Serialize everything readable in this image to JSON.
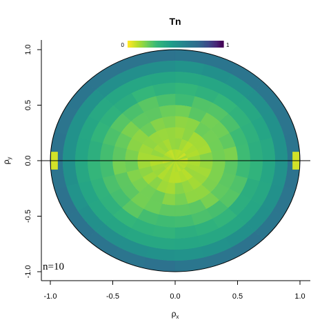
{
  "chart_data": {
    "type": "heatmap",
    "title": "Tn",
    "xlabel_main": "ρ",
    "xlabel_sub": "x",
    "ylabel_main": "ρ",
    "ylabel_sub": "y",
    "xlim": [
      -1.0,
      1.0
    ],
    "ylim": [
      -1.0,
      1.0
    ],
    "xticks": [
      -1.0,
      -0.5,
      0.0,
      0.5,
      1.0
    ],
    "xtick_labels": [
      "-1.0",
      "-0.5",
      "0.0",
      "0.5",
      "1.0"
    ],
    "yticks": [
      -1.0,
      -0.5,
      0.0,
      0.5,
      1.0
    ],
    "ytick_labels": [
      "-1.0",
      "-0.5",
      "0.0",
      "0.5",
      "1.0"
    ],
    "colorbar": {
      "min": 0,
      "max": 1,
      "min_label": "0",
      "max_label": "1",
      "colormap": "viridis",
      "placement": "top"
    },
    "annotation": "n=10",
    "radial_bins": [
      0.1,
      0.2,
      0.3,
      0.4,
      0.5,
      0.6,
      0.7,
      0.8,
      0.9,
      1.0
    ],
    "ring_values": [
      0.1,
      0.12,
      0.15,
      0.18,
      0.21,
      0.26,
      0.33,
      0.4,
      0.52,
      0.68
    ],
    "edge_value_at_rho_x_pm1": 0.06,
    "grid": false,
    "legend": "none"
  }
}
